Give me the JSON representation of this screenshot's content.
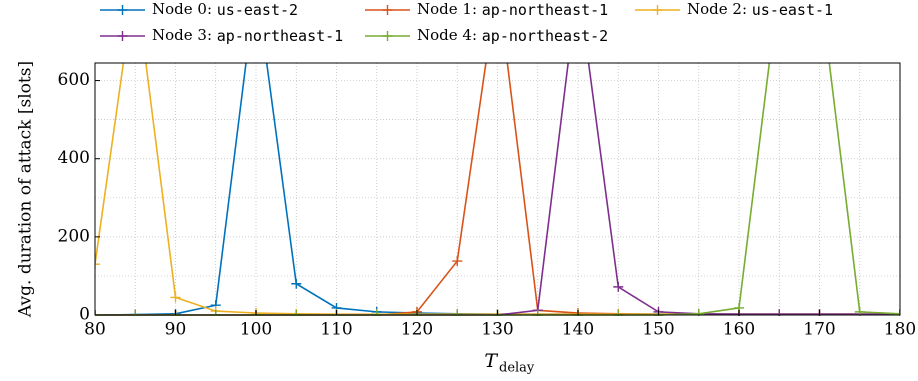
{
  "chart_data": {
    "type": "line",
    "xlabel": "T",
    "xlabel_subscript": "delay",
    "ylabel": "Avg. duration of attack [slots]",
    "x": [
      80,
      85,
      90,
      95,
      100,
      105,
      110,
      115,
      120,
      125,
      130,
      135,
      140,
      145,
      150,
      155,
      160,
      165,
      170,
      175,
      180
    ],
    "series": [
      {
        "name": "Node 0: us-east-2",
        "color": "#0072bd",
        "values": [
          0,
          1,
          3,
          25,
          850,
          80,
          18,
          8,
          5,
          3,
          2,
          2,
          2,
          2,
          2,
          2,
          2,
          2,
          2,
          2,
          2
        ]
      },
      {
        "name": "Node 1: ap-northeast-1",
        "color": "#d95319",
        "values": [
          0,
          0,
          0,
          0,
          0,
          0,
          0,
          0,
          8,
          138,
          850,
          12,
          5,
          3,
          2,
          2,
          2,
          2,
          2,
          2,
          2
        ]
      },
      {
        "name": "Node 2: us-east-1",
        "color": "#edb120",
        "values": [
          130,
          860,
          45,
          10,
          5,
          3,
          2,
          2,
          2,
          2,
          2,
          2,
          2,
          2,
          2,
          2,
          2,
          2,
          2,
          2,
          2
        ]
      },
      {
        "name": "Node 3: ap-northeast-1",
        "color": "#7e2f8e",
        "values": [
          0,
          0,
          0,
          0,
          0,
          0,
          0,
          0,
          0,
          0,
          0,
          12,
          850,
          72,
          8,
          3,
          2,
          2,
          2,
          2,
          2
        ]
      },
      {
        "name": "Node 4: ap-northeast-2",
        "color": "#77ac30",
        "values": [
          0,
          0,
          0,
          0,
          0,
          0,
          0,
          0,
          0,
          0,
          0,
          0,
          0,
          0,
          0,
          3,
          18,
          850,
          850,
          8,
          3
        ]
      }
    ],
    "xlim": [
      80,
      180
    ],
    "xticks": [
      80,
      90,
      100,
      110,
      120,
      130,
      140,
      150,
      160,
      170,
      180
    ],
    "xminor": [
      85,
      95,
      105,
      115,
      125,
      135,
      145,
      155,
      165,
      175
    ],
    "ylim": [
      0,
      645
    ],
    "yticks": [
      0,
      200,
      400,
      600
    ],
    "yminor": [
      100,
      300,
      500
    ],
    "grid": true
  }
}
